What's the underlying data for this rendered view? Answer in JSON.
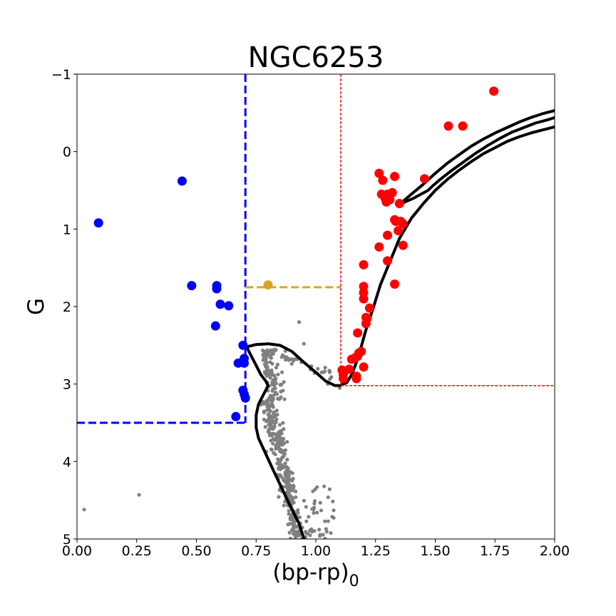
{
  "chart_data": {
    "type": "scatter",
    "title": "NGC6253",
    "xlabel_main": "(bp-rp)",
    "xlabel_sub": "0",
    "ylabel": "G",
    "xlim": [
      0.0,
      2.0
    ],
    "ylim": [
      5,
      -1
    ],
    "xticks": [
      0.0,
      0.25,
      0.5,
      0.75,
      1.0,
      1.25,
      1.5,
      1.75,
      2.0
    ],
    "xtick_labels": [
      "0.00",
      "0.25",
      "0.50",
      "0.75",
      "1.00",
      "1.25",
      "1.50",
      "1.75",
      "2.00"
    ],
    "yticks": [
      -1,
      0,
      1,
      2,
      3,
      4,
      5
    ],
    "ytick_labels": [
      "−1",
      "0",
      "1",
      "2",
      "3",
      "4",
      "5"
    ],
    "colors": {
      "blue": "#0000ff",
      "red": "#ff0000",
      "gold": "#daa520",
      "gray": "#808080",
      "black": "#000000"
    },
    "blue_stragglers": [
      [
        0.09,
        0.92
      ],
      [
        0.44,
        0.38
      ],
      [
        0.48,
        1.73
      ],
      [
        0.585,
        1.73
      ],
      [
        0.585,
        1.77
      ],
      [
        0.6,
        1.97
      ],
      [
        0.635,
        1.99
      ],
      [
        0.58,
        2.25
      ],
      [
        0.695,
        2.5
      ],
      [
        0.7,
        2.67
      ],
      [
        0.675,
        2.73
      ],
      [
        0.7,
        2.73
      ],
      [
        0.695,
        3.08
      ],
      [
        0.7,
        3.13
      ],
      [
        0.705,
        3.18
      ],
      [
        0.665,
        3.42
      ]
    ],
    "yellow_straggler": [
      [
        0.8,
        1.72
      ]
    ],
    "red_giants": [
      [
        1.745,
        -0.78
      ],
      [
        1.555,
        -0.33
      ],
      [
        1.615,
        -0.33
      ],
      [
        1.265,
        0.28
      ],
      [
        1.33,
        0.32
      ],
      [
        1.455,
        0.35
      ],
      [
        1.28,
        0.37
      ],
      [
        1.275,
        0.55
      ],
      [
        1.3,
        0.55
      ],
      [
        1.32,
        0.53
      ],
      [
        1.29,
        0.6
      ],
      [
        1.31,
        0.62
      ],
      [
        1.35,
        0.67
      ],
      [
        1.295,
        0.65
      ],
      [
        1.33,
        0.88
      ],
      [
        1.335,
        0.9
      ],
      [
        1.355,
        0.9
      ],
      [
        1.365,
        0.93
      ],
      [
        1.345,
        1.02
      ],
      [
        1.3,
        1.08
      ],
      [
        1.365,
        1.21
      ],
      [
        1.265,
        1.23
      ],
      [
        1.3,
        1.41
      ],
      [
        1.2,
        1.46
      ],
      [
        1.33,
        1.71
      ],
      [
        1.2,
        1.74
      ],
      [
        1.2,
        1.82
      ],
      [
        1.2,
        1.9
      ],
      [
        1.225,
        2.02
      ],
      [
        1.21,
        2.14
      ],
      [
        1.21,
        2.22
      ],
      [
        1.175,
        2.34
      ],
      [
        1.215,
        2.15
      ],
      [
        1.11,
        2.82
      ],
      [
        1.14,
        2.81
      ],
      [
        1.115,
        2.88
      ],
      [
        1.115,
        2.93
      ],
      [
        1.15,
        2.68
      ],
      [
        1.165,
        2.66
      ],
      [
        1.175,
        2.64
      ],
      [
        1.19,
        2.58
      ],
      [
        1.18,
        2.6
      ],
      [
        1.17,
        2.9
      ],
      [
        1.2,
        2.78
      ],
      [
        1.17,
        2.93
      ]
    ],
    "isochrone_ms": [
      [
        0.71,
        2.52
      ],
      [
        0.75,
        2.49
      ],
      [
        0.8,
        2.48
      ],
      [
        0.85,
        2.5
      ],
      [
        0.9,
        2.58
      ],
      [
        0.95,
        2.72
      ],
      [
        1.0,
        2.85
      ],
      [
        1.04,
        2.96
      ],
      [
        1.08,
        3.02
      ],
      [
        1.1,
        3.02
      ],
      [
        1.13,
        2.98
      ],
      [
        1.15,
        2.88
      ],
      [
        1.17,
        2.72
      ],
      [
        1.19,
        2.52
      ],
      [
        1.21,
        2.3
      ],
      [
        1.24,
        2.02
      ],
      [
        1.27,
        1.72
      ],
      [
        1.31,
        1.42
      ],
      [
        1.35,
        1.12
      ],
      [
        1.4,
        0.86
      ],
      [
        1.45,
        0.67
      ],
      [
        1.5,
        0.5
      ],
      [
        1.55,
        0.36
      ],
      [
        1.6,
        0.24
      ],
      [
        1.65,
        0.13
      ],
      [
        1.7,
        0.03
      ],
      [
        1.75,
        -0.05
      ],
      [
        1.8,
        -0.13
      ],
      [
        1.85,
        -0.19
      ],
      [
        1.9,
        -0.24
      ],
      [
        1.95,
        -0.28
      ],
      [
        2.0,
        -0.32
      ]
    ],
    "isochrone_lower": [
      [
        0.71,
        2.52
      ],
      [
        0.73,
        2.64
      ],
      [
        0.75,
        2.76
      ],
      [
        0.77,
        2.88
      ],
      [
        0.79,
        2.96
      ],
      [
        0.8,
        3.02
      ],
      [
        0.79,
        3.08
      ],
      [
        0.78,
        3.14
      ],
      [
        0.76,
        3.26
      ],
      [
        0.75,
        3.4
      ],
      [
        0.75,
        3.56
      ],
      [
        0.76,
        3.7
      ],
      [
        0.79,
        3.9
      ],
      [
        0.82,
        4.1
      ],
      [
        0.86,
        4.36
      ],
      [
        0.9,
        4.62
      ],
      [
        0.93,
        4.8
      ],
      [
        0.95,
        5.0
      ]
    ],
    "isochrone_agb_a": [
      [
        1.35,
        0.68
      ],
      [
        1.4,
        0.55
      ],
      [
        1.45,
        0.42
      ],
      [
        1.5,
        0.28
      ],
      [
        1.55,
        0.15
      ],
      [
        1.6,
        0.04
      ],
      [
        1.65,
        -0.07
      ],
      [
        1.7,
        -0.16
      ],
      [
        1.75,
        -0.24
      ],
      [
        1.8,
        -0.31
      ],
      [
        1.85,
        -0.38
      ],
      [
        1.9,
        -0.44
      ],
      [
        1.95,
        -0.49
      ],
      [
        2.0,
        -0.53
      ]
    ],
    "isochrone_agb_b": [
      [
        1.365,
        0.66
      ],
      [
        1.41,
        0.6
      ],
      [
        1.44,
        0.55
      ],
      [
        1.47,
        0.5
      ],
      [
        1.49,
        0.44
      ],
      [
        1.52,
        0.36
      ],
      [
        1.57,
        0.24
      ],
      [
        1.62,
        0.13
      ],
      [
        1.67,
        0.02
      ],
      [
        1.72,
        -0.08
      ],
      [
        1.77,
        -0.17
      ],
      [
        1.82,
        -0.25
      ],
      [
        1.87,
        -0.31
      ],
      [
        1.92,
        -0.37
      ],
      [
        1.97,
        -0.41
      ],
      [
        2.0,
        -0.44
      ]
    ],
    "regions": {
      "blue_box": {
        "x_max": 0.705,
        "y_min": -1,
        "y_max": 3.5
      },
      "yellow_line": {
        "x_min": 0.705,
        "x_max": 1.105,
        "y": 1.75
      },
      "red_region": {
        "x_min": 1.105,
        "x_max": 2.0,
        "y_min": -1,
        "y_max": 3.02
      }
    },
    "field_stars": [
      [
        0.03,
        4.62
      ],
      [
        0.26,
        4.43
      ],
      [
        0.93,
        2.2
      ],
      [
        0.95,
        2.48
      ],
      [
        1.05,
        3.0
      ],
      [
        1.1,
        3.05
      ]
    ]
  }
}
